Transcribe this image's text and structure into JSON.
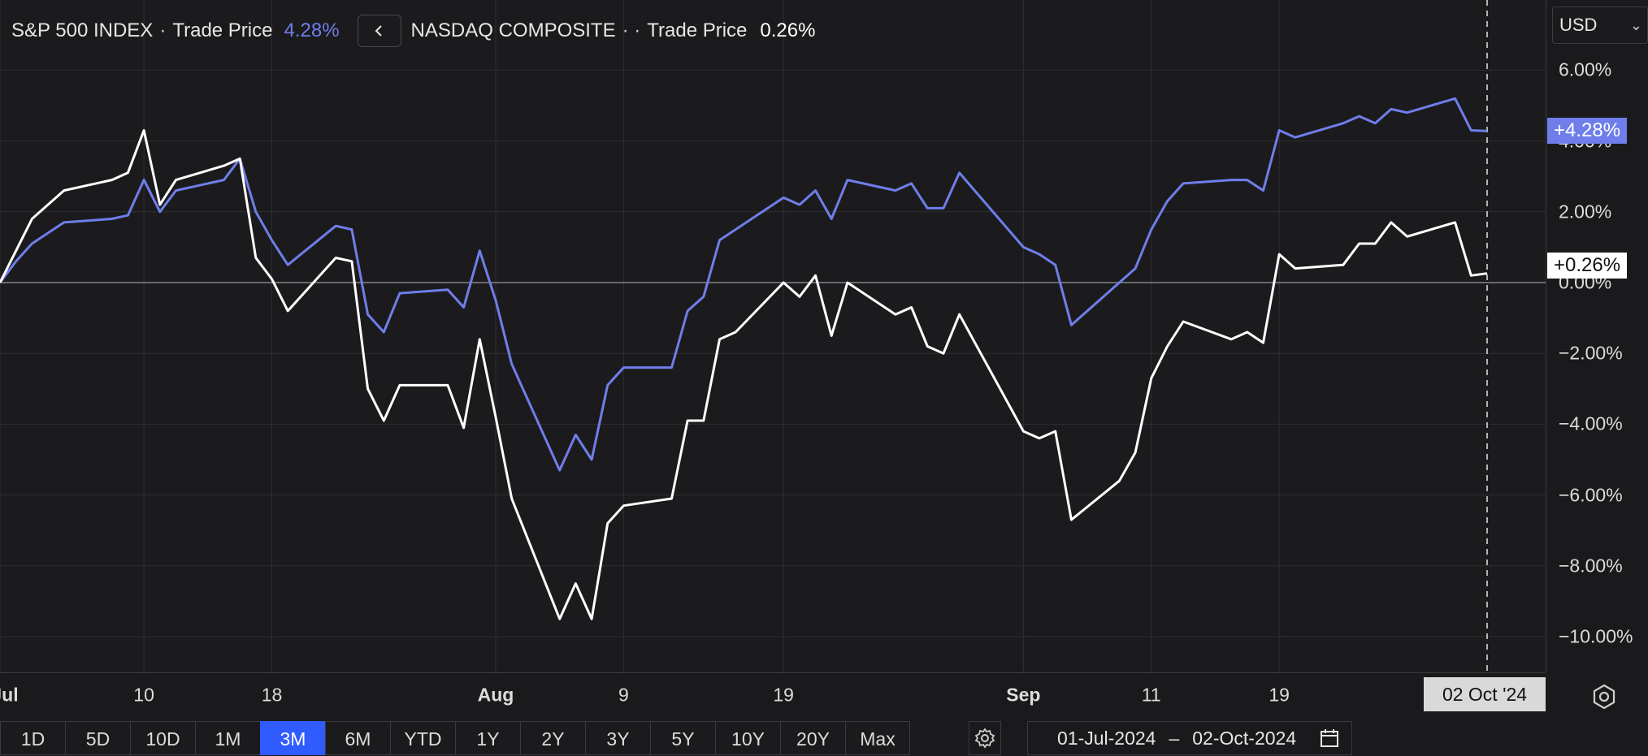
{
  "legend": {
    "series1_name": "S&P 500 INDEX",
    "series1_dot": "·",
    "series1_label": "Trade Price",
    "series1_value": "4.28%",
    "back_icon": "chevron-left-icon",
    "series2_name": "NASDAQ COMPOSITE",
    "series2_dots": "· ·",
    "series2_label": "Trade Price",
    "series2_value": "0.26%"
  },
  "currency": {
    "selected": "USD",
    "icon": "chevron-down-icon"
  },
  "badges": {
    "series1": "+4.28%",
    "series2": "+0.26%",
    "hover_date": "02 Oct '24"
  },
  "colors": {
    "series1": "#6f7eea",
    "series2": "#ffffff",
    "accent": "#2f5bff",
    "background": "#1b1b1d"
  },
  "range_buttons": [
    "1D",
    "5D",
    "10D",
    "1M",
    "3M",
    "6M",
    "YTD",
    "1Y",
    "2Y",
    "3Y",
    "5Y",
    "10Y",
    "20Y",
    "Max"
  ],
  "active_range": "3M",
  "date_range": {
    "from": "01-Jul-2024",
    "separator": "–",
    "to": "02-Oct-2024",
    "icon": "calendar-icon"
  },
  "chart_data": {
    "type": "line",
    "title": "",
    "xlabel": "",
    "ylabel": "",
    "unit": "%",
    "ylim": [
      -11,
      7
    ],
    "grid": true,
    "y_ticks": [
      6,
      4,
      2,
      0,
      -2,
      -4,
      -6,
      -8,
      -10
    ],
    "y_tick_labels": [
      "6.00%",
      "4.00%",
      "2.00%",
      "0.00%",
      "−2.00%",
      "−4.00%",
      "−6.00%",
      "−8.00%",
      "−10.00%"
    ],
    "x_ticks": [
      {
        "date": "2024-07-01",
        "label": "Jul",
        "bold": true
      },
      {
        "date": "2024-07-10",
        "label": "10",
        "bold": false
      },
      {
        "date": "2024-07-18",
        "label": "18",
        "bold": false
      },
      {
        "date": "2024-08-01",
        "label": "Aug",
        "bold": true
      },
      {
        "date": "2024-08-09",
        "label": "9",
        "bold": false
      },
      {
        "date": "2024-08-19",
        "label": "19",
        "bold": false
      },
      {
        "date": "2024-09-03",
        "label": "Sep",
        "bold": true
      },
      {
        "date": "2024-09-11",
        "label": "11",
        "bold": false
      },
      {
        "date": "2024-09-19",
        "label": "19",
        "bold": false
      }
    ],
    "crosshair_date": "2024-10-02",
    "x": [
      "2024-07-01",
      "2024-07-02",
      "2024-07-03",
      "2024-07-05",
      "2024-07-08",
      "2024-07-09",
      "2024-07-10",
      "2024-07-11",
      "2024-07-12",
      "2024-07-15",
      "2024-07-16",
      "2024-07-17",
      "2024-07-18",
      "2024-07-19",
      "2024-07-22",
      "2024-07-23",
      "2024-07-24",
      "2024-07-25",
      "2024-07-26",
      "2024-07-29",
      "2024-07-30",
      "2024-07-31",
      "2024-08-01",
      "2024-08-02",
      "2024-08-05",
      "2024-08-06",
      "2024-08-07",
      "2024-08-08",
      "2024-08-09",
      "2024-08-12",
      "2024-08-13",
      "2024-08-14",
      "2024-08-15",
      "2024-08-16",
      "2024-08-19",
      "2024-08-20",
      "2024-08-21",
      "2024-08-22",
      "2024-08-23",
      "2024-08-26",
      "2024-08-27",
      "2024-08-28",
      "2024-08-29",
      "2024-08-30",
      "2024-09-03",
      "2024-09-04",
      "2024-09-05",
      "2024-09-06",
      "2024-09-09",
      "2024-09-10",
      "2024-09-11",
      "2024-09-12",
      "2024-09-13",
      "2024-09-16",
      "2024-09-17",
      "2024-09-18",
      "2024-09-19",
      "2024-09-20",
      "2024-09-23",
      "2024-09-24",
      "2024-09-25",
      "2024-09-26",
      "2024-09-27",
      "2024-09-30",
      "2024-10-01",
      "2024-10-02"
    ],
    "series": [
      {
        "name": "S&P 500 INDEX",
        "values": [
          0.0,
          0.6,
          1.1,
          1.7,
          1.8,
          1.9,
          2.9,
          2.0,
          2.6,
          2.9,
          3.5,
          2.0,
          1.2,
          0.5,
          1.6,
          1.5,
          -0.9,
          -1.4,
          -0.3,
          -0.2,
          -0.7,
          0.9,
          -0.5,
          -2.3,
          -5.3,
          -4.3,
          -5.0,
          -2.9,
          -2.4,
          -2.4,
          -0.8,
          -0.4,
          1.2,
          1.5,
          2.4,
          2.2,
          2.6,
          1.8,
          2.9,
          2.6,
          2.8,
          2.1,
          2.1,
          3.1,
          1.0,
          0.8,
          0.5,
          -1.2,
          0.0,
          0.4,
          1.5,
          2.3,
          2.8,
          2.9,
          2.9,
          2.6,
          4.3,
          4.1,
          4.5,
          4.7,
          4.5,
          4.9,
          4.8,
          5.2,
          4.3,
          4.28
        ]
      },
      {
        "name": "NASDAQ COMPOSITE",
        "values": [
          0.0,
          0.9,
          1.8,
          2.6,
          2.9,
          3.1,
          4.3,
          2.2,
          2.9,
          3.3,
          3.5,
          0.7,
          0.1,
          -0.8,
          0.7,
          0.6,
          -3.0,
          -3.9,
          -2.9,
          -2.9,
          -4.1,
          -1.6,
          -3.8,
          -6.1,
          -9.5,
          -8.5,
          -9.5,
          -6.8,
          -6.3,
          -6.1,
          -3.9,
          -3.9,
          -1.6,
          -1.4,
          0.0,
          -0.4,
          0.2,
          -1.5,
          0.0,
          -0.9,
          -0.7,
          -1.8,
          -2.0,
          -0.9,
          -4.2,
          -4.4,
          -4.2,
          -6.7,
          -5.6,
          -4.8,
          -2.7,
          -1.8,
          -1.1,
          -1.6,
          -1.4,
          -1.7,
          0.8,
          0.4,
          0.5,
          1.1,
          1.1,
          1.7,
          1.3,
          1.7,
          0.2,
          0.26
        ]
      }
    ]
  }
}
